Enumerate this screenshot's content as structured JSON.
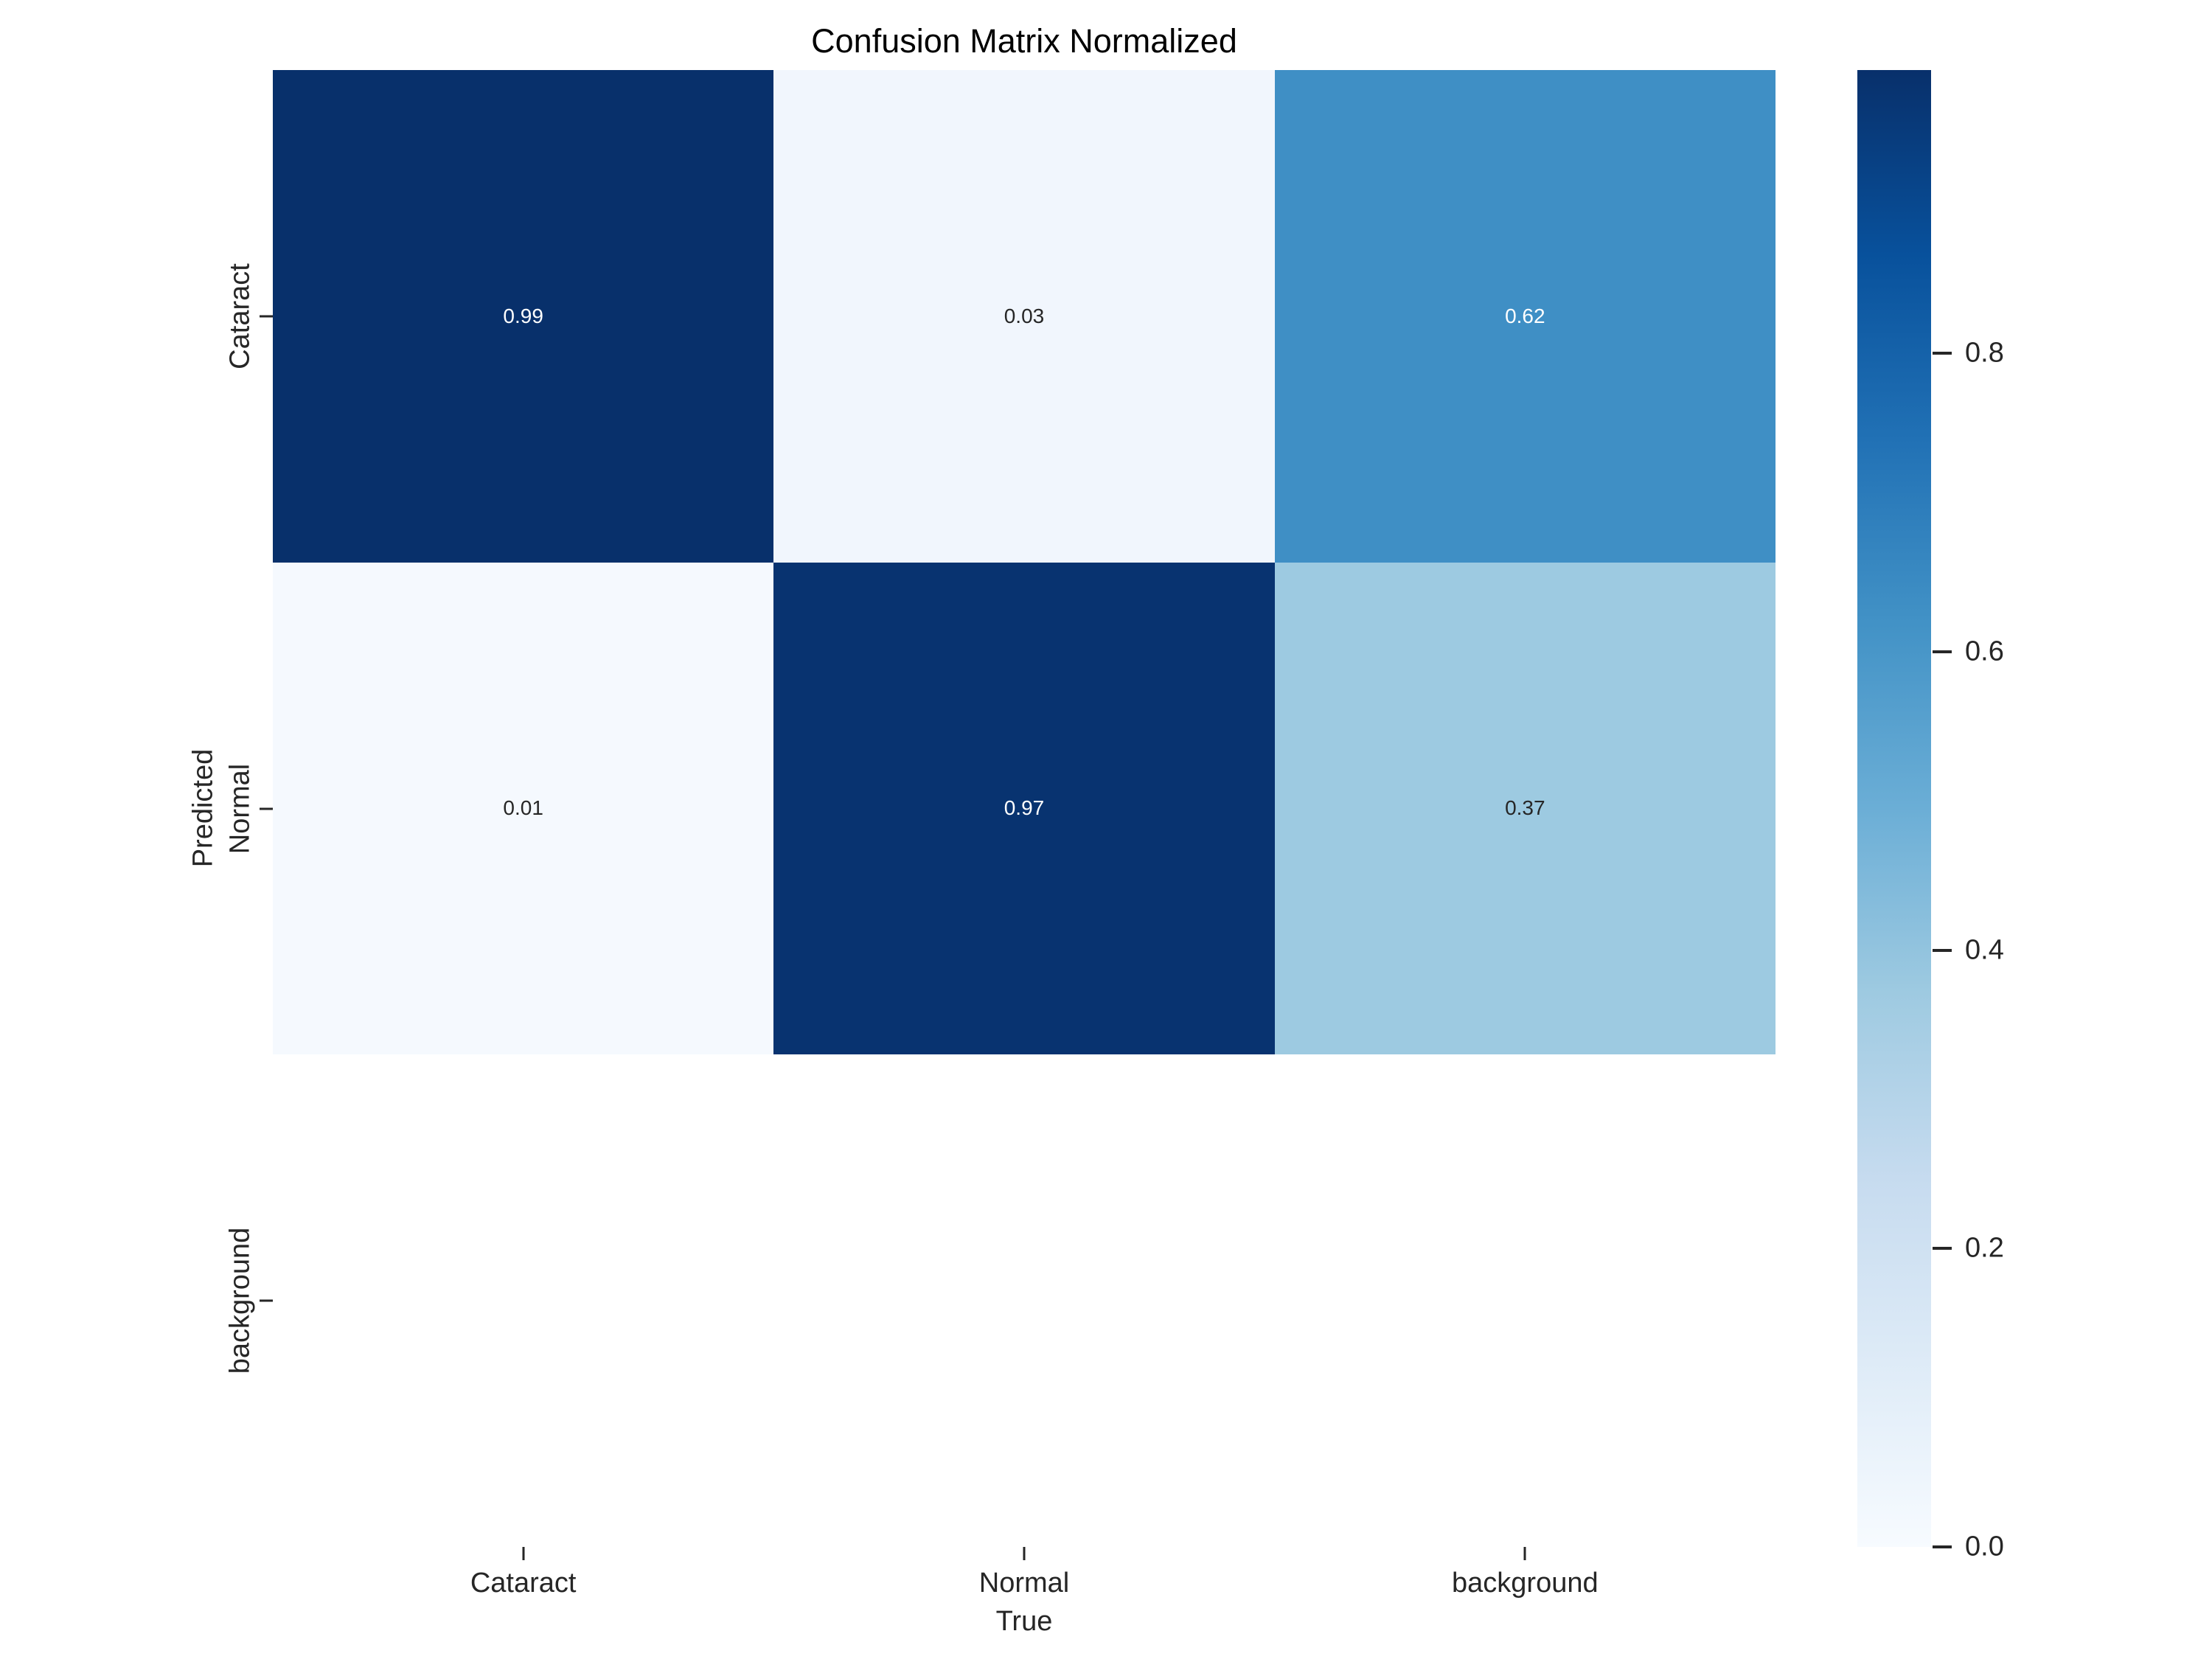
{
  "title": "Confusion Matrix Normalized",
  "chart_data": {
    "type": "heatmap",
    "title": "Confusion Matrix Normalized",
    "xlabel": "True",
    "ylabel": "Predicted",
    "x_categories": [
      "Cataract",
      "Normal",
      "background"
    ],
    "y_categories": [
      "Cataract",
      "Normal",
      "background"
    ],
    "matrix": [
      [
        0.99,
        0.03,
        0.62
      ],
      [
        0.01,
        0.97,
        0.37
      ],
      [
        null,
        null,
        null
      ]
    ],
    "annotations": [
      [
        "0.99",
        "0.03",
        "0.62"
      ],
      [
        "0.01",
        "0.97",
        "0.37"
      ],
      [
        "",
        "",
        ""
      ]
    ],
    "cell_colors": [
      [
        "#08306b",
        "#f1f6fd",
        "#3f8fc5"
      ],
      [
        "#f5f9fe",
        "#083370",
        "#9dcae1"
      ],
      [
        "#ffffff",
        "#ffffff",
        "#ffffff"
      ]
    ],
    "cell_text_colors": [
      [
        "#ffffff",
        "#262626",
        "#ffffff"
      ],
      [
        "#262626",
        "#ffffff",
        "#262626"
      ],
      [
        "",
        "",
        ""
      ]
    ],
    "colormap": "Blues",
    "vmin": 0.0,
    "vmax": 0.99,
    "grid": false,
    "legend_position": "right-colorbar",
    "colorbar": {
      "tick_labels": [
        "0.8",
        "0.6",
        "0.4",
        "0.2",
        "0.0"
      ],
      "tick_values": [
        0.8,
        0.6,
        0.4,
        0.2,
        0.0
      ],
      "gradient_stops": [
        "#f7fbff",
        "#deebf7",
        "#c6dbef",
        "#9ecae1",
        "#6baed6",
        "#4292c6",
        "#2171b5",
        "#08519c",
        "#08306b"
      ]
    }
  },
  "colors": {
    "background": "#ffffff",
    "text": "#262626",
    "title_text": "#000000",
    "tick_mark": "#262626",
    "max_blue": "#08306b",
    "min_blue": "#f7fbff"
  }
}
